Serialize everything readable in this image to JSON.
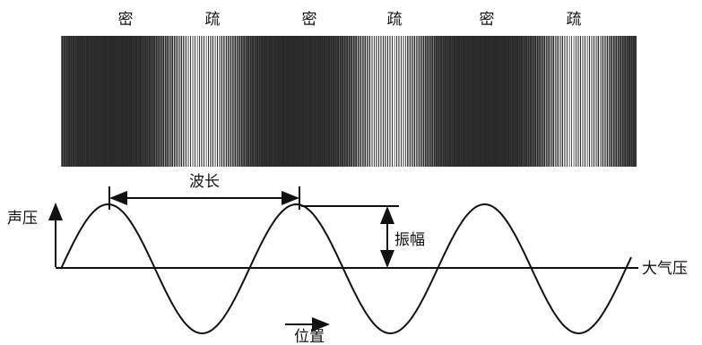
{
  "density_labels": [
    "密",
    "疏",
    "密",
    "疏",
    "密",
    "疏"
  ],
  "wavelength_label": "波长",
  "amplitude_label": "振幅",
  "y_axis_label": "声压",
  "baseline_label": "大气压",
  "x_axis_label": "位置"
}
